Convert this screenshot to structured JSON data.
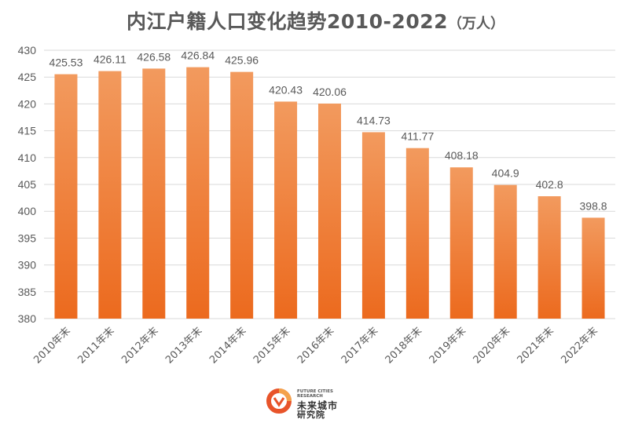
{
  "chart_data": {
    "type": "bar",
    "title": "内江户籍人口变化趋势2010-2022",
    "unit_label": "（万人）",
    "categories": [
      "2010年末",
      "2011年末",
      "2012年末",
      "2013年末",
      "2014年末",
      "2015年末",
      "2016年末",
      "2017年末",
      "2018年末",
      "2019年末",
      "2020年末",
      "2021年末",
      "2022年末"
    ],
    "values": [
      425.53,
      426.11,
      426.58,
      426.84,
      425.96,
      420.43,
      420.06,
      414.73,
      411.77,
      408.18,
      404.9,
      402.8,
      398.8
    ],
    "value_labels": [
      "425.53",
      "426.11",
      "426.58",
      "426.84",
      "425.96",
      "420.43",
      "420.06",
      "414.73",
      "411.77",
      "408.18",
      "404.9",
      "402.8",
      "398.8"
    ],
    "yticks": [
      "380",
      "385",
      "390",
      "395",
      "400",
      "405",
      "410",
      "415",
      "420",
      "425",
      "430"
    ],
    "ylim": [
      380,
      430
    ],
    "grid": true,
    "legend": "none",
    "colors": {
      "bar_top": "#F29A5E",
      "bar_bottom": "#EC6A1E",
      "grid": "#D9D9D9",
      "text": "#595959"
    }
  },
  "logo": {
    "english": "FUTURE CITIES RESEARCH",
    "chinese_line1": "未来城市",
    "chinese_line2": "研究院",
    "colors": {
      "ring": "#E8542A",
      "ring_light": "#F4A24B"
    }
  }
}
